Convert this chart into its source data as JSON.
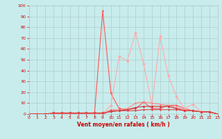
{
  "x": [
    0,
    1,
    2,
    3,
    4,
    5,
    6,
    7,
    8,
    9,
    10,
    11,
    12,
    13,
    14,
    15,
    16,
    17,
    18,
    19,
    20,
    21,
    22,
    23
  ],
  "series": [
    {
      "color": "#ff5555",
      "linewidth": 0.8,
      "marker": "v",
      "markersize": 2,
      "values": [
        0,
        0,
        0,
        0,
        0,
        0,
        0,
        0,
        0,
        95,
        19,
        5,
        4,
        5,
        11,
        5,
        5,
        8,
        8,
        5,
        3,
        2,
        2,
        0
      ]
    },
    {
      "color": "#ffaaaa",
      "linewidth": 0.8,
      "marker": "D",
      "markersize": 2,
      "values": [
        0,
        0,
        0,
        0,
        0,
        0,
        0,
        0,
        0,
        0,
        8,
        53,
        49,
        75,
        46,
        8,
        72,
        35,
        16,
        5,
        9,
        2,
        2,
        0
      ]
    },
    {
      "color": "#ff8888",
      "linewidth": 0.8,
      "marker": "^",
      "markersize": 2,
      "values": [
        0,
        0,
        0,
        0,
        0,
        0,
        0,
        0,
        0,
        0,
        4,
        4,
        5,
        10,
        11,
        10,
        9,
        8,
        6,
        4,
        3,
        2,
        2,
        0
      ]
    },
    {
      "color": "#cc3333",
      "linewidth": 0.8,
      "marker": "^",
      "markersize": 2,
      "values": [
        0,
        0,
        0,
        0,
        0,
        0,
        0,
        0,
        0,
        0,
        3,
        3,
        4,
        6,
        7,
        7,
        7,
        7,
        5,
        3,
        3,
        2,
        2,
        0
      ]
    },
    {
      "color": "#dd4444",
      "linewidth": 0.8,
      "marker": "v",
      "markersize": 2,
      "values": [
        0,
        0,
        0,
        1,
        1,
        1,
        1,
        1,
        1,
        1,
        2,
        3,
        3,
        3,
        4,
        4,
        4,
        4,
        4,
        3,
        3,
        2,
        2,
        0
      ]
    }
  ],
  "xlim": [
    0,
    23
  ],
  "ylim": [
    0,
    100
  ],
  "yticks": [
    0,
    10,
    20,
    30,
    40,
    50,
    60,
    70,
    80,
    90,
    100
  ],
  "xticks": [
    0,
    1,
    2,
    3,
    4,
    5,
    6,
    7,
    8,
    9,
    10,
    11,
    12,
    13,
    14,
    15,
    16,
    17,
    18,
    19,
    20,
    21,
    22,
    23
  ],
  "xlabel": "Vent moyen/en rafales ( km/h )",
  "background_color": "#c8ecec",
  "grid_color": "#b0cccc",
  "tick_color": "#cc0000",
  "label_color": "#cc0000",
  "xlabel_color": "#cc0000"
}
